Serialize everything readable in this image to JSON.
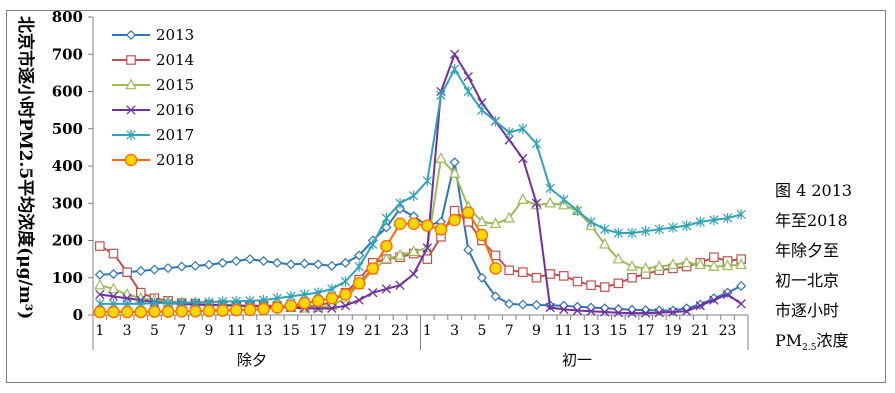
{
  "chart_data": {
    "type": "line",
    "ylabel": "北京市逐小时PM2.5平均浓度(μg/m³)",
    "ylim": [
      0,
      800
    ],
    "yticks": [
      0,
      100,
      200,
      300,
      400,
      500,
      600,
      700,
      800
    ],
    "grid": false,
    "legend": "top-left",
    "x_tick_labels": [
      "1",
      "3",
      "5",
      "7",
      "9",
      "11",
      "13",
      "15",
      "17",
      "19",
      "21",
      "23",
      "1",
      "3",
      "5",
      "7",
      "9",
      "11",
      "13",
      "15",
      "17",
      "19",
      "21",
      "23"
    ],
    "groups": [
      "除夕",
      "初一"
    ],
    "caption": {
      "lines": [
        "图 4 2013",
        "年至2018",
        "年除夕至",
        "初一北京",
        "市逐小时"
      ],
      "last": {
        "a": "PM",
        "sub": "2.5",
        "b": "浓度"
      }
    },
    "series": [
      {
        "name": "2013",
        "color": "#2e75b6",
        "marker": "diamond",
        "values": [
          108,
          110,
          115,
          118,
          122,
          126,
          130,
          132,
          135,
          140,
          145,
          150,
          145,
          140,
          136,
          138,
          136,
          132,
          140,
          160,
          200,
          235,
          285,
          265,
          240,
          250,
          410,
          175,
          100,
          50,
          30,
          28,
          27,
          26,
          25,
          22,
          20,
          18,
          16,
          14,
          13,
          12,
          12,
          18,
          28,
          45,
          60,
          78
        ]
      },
      {
        "name": "2014",
        "color": "#c0504d",
        "marker": "square",
        "values": [
          185,
          165,
          115,
          60,
          45,
          38,
          32,
          30,
          28,
          27,
          26,
          25,
          25,
          24,
          22,
          22,
          25,
          35,
          60,
          95,
          140,
          150,
          155,
          165,
          150,
          210,
          280,
          250,
          200,
          160,
          120,
          115,
          100,
          110,
          105,
          90,
          80,
          75,
          85,
          100,
          110,
          120,
          125,
          130,
          140,
          155,
          145,
          150
        ]
      },
      {
        "name": "2015",
        "color": "#9bbb59",
        "marker": "triangle",
        "values": [
          80,
          70,
          55,
          45,
          40,
          35,
          32,
          30,
          28,
          27,
          26,
          25,
          24,
          22,
          20,
          18,
          20,
          25,
          45,
          80,
          120,
          150,
          160,
          170,
          180,
          420,
          380,
          290,
          250,
          245,
          260,
          310,
          295,
          300,
          295,
          280,
          240,
          190,
          150,
          130,
          125,
          130,
          135,
          140,
          135,
          130,
          132,
          135
        ]
      },
      {
        "name": "2016",
        "color": "#7030a0",
        "marker": "x",
        "values": [
          55,
          50,
          45,
          40,
          35,
          32,
          30,
          28,
          27,
          26,
          25,
          24,
          23,
          22,
          20,
          18,
          17,
          18,
          25,
          40,
          60,
          70,
          80,
          110,
          180,
          600,
          700,
          640,
          570,
          520,
          470,
          420,
          300,
          20,
          15,
          12,
          10,
          8,
          6,
          5,
          5,
          6,
          8,
          10,
          25,
          40,
          55,
          30
        ]
      },
      {
        "name": "2017",
        "color": "#31a3b6",
        "marker": "asterisk",
        "values": [
          30,
          30,
          30,
          30,
          32,
          32,
          33,
          34,
          35,
          36,
          37,
          38,
          40,
          45,
          50,
          55,
          60,
          70,
          90,
          130,
          190,
          260,
          300,
          320,
          360,
          590,
          660,
          600,
          550,
          520,
          490,
          500,
          460,
          340,
          310,
          280,
          250,
          230,
          220,
          220,
          225,
          230,
          235,
          240,
          250,
          255,
          260,
          270
        ]
      },
      {
        "name": "2018",
        "color": "#ff6a00",
        "marker": "circle",
        "values": [
          8,
          8,
          8,
          8,
          9,
          9,
          10,
          10,
          11,
          12,
          13,
          14,
          16,
          20,
          25,
          32,
          38,
          45,
          55,
          85,
          125,
          185,
          245,
          245,
          240,
          230,
          255,
          275,
          215,
          125
        ]
      }
    ]
  }
}
